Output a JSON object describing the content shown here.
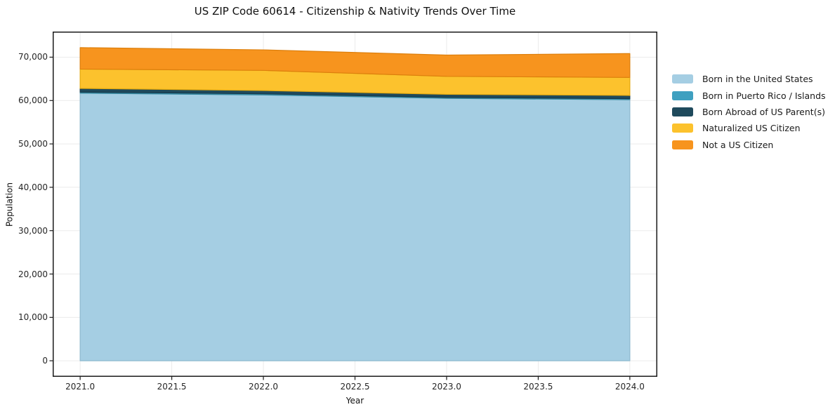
{
  "chart_data": {
    "type": "area",
    "stacked": true,
    "title": "US ZIP Code 60614 - Citizenship & Nativity Trends Over Time",
    "xlabel": "Year",
    "ylabel": "Population",
    "x": [
      2021,
      2022,
      2023,
      2024
    ],
    "series": [
      {
        "name": "Born in the United States",
        "color": "#A5CEE3",
        "edge_color": "#8FB9D0",
        "values": [
          61700,
          61300,
          60500,
          60200
        ]
      },
      {
        "name": "Born in Puerto Rico / Islands",
        "color": "#3FA0C0",
        "edge_color": "#35879E",
        "values": [
          250,
          250,
          230,
          230
        ]
      },
      {
        "name": "Born Abroad of US Parent(s)",
        "color": "#1F4A5C",
        "edge_color": "#16384A",
        "values": [
          850,
          750,
          700,
          750
        ]
      },
      {
        "name": "Naturalized US Citizen",
        "color": "#FCC22D",
        "edge_color": "#E3A90F",
        "values": [
          4450,
          4650,
          4150,
          4150
        ]
      },
      {
        "name": "Not a US Citizen",
        "color": "#F7941E",
        "edge_color": "#DD7F0C",
        "values": [
          4950,
          4730,
          4900,
          5500
        ]
      }
    ],
    "totals": [
      72200,
      71680,
      70480,
      70830
    ],
    "x_ticks": {
      "values": [
        2021.0,
        2021.5,
        2022.0,
        2022.5,
        2023.0,
        2023.5,
        2024.0
      ],
      "labels": [
        "2021.0",
        "2021.5",
        "2022.0",
        "2022.5",
        "2023.0",
        "2023.5",
        "2024.0"
      ]
    },
    "y_ticks": {
      "values": [
        0,
        10000,
        20000,
        30000,
        40000,
        50000,
        60000,
        70000
      ],
      "labels": [
        "0",
        "10,000",
        "20,000",
        "30,000",
        "40,000",
        "50,000",
        "60,000",
        "70,000"
      ]
    },
    "xlim": [
      2020.85,
      2024.15
    ],
    "ylim": [
      -3700,
      75900
    ],
    "grid": true,
    "grid_color": "#ebebeb",
    "spine_color": "#1a1a1a",
    "legend_position": "right"
  }
}
